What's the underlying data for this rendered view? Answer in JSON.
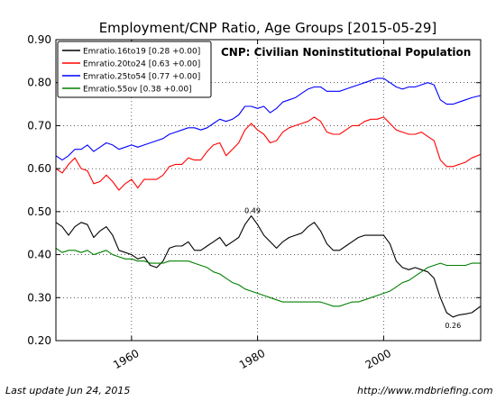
{
  "chart_data": {
    "type": "line",
    "title": "Employment/CNP Ratio, Age Groups  [2015-05-29]",
    "annotation_main": "CNP: Civilian Noninstitutional Population",
    "xlim": [
      1948,
      2015.4
    ],
    "ylim": [
      0.2,
      0.9
    ],
    "x_ticks": [
      1960,
      1980,
      2000
    ],
    "x_tick_labels": [
      "1960",
      "1980",
      "2000"
    ],
    "y_ticks": [
      0.2,
      0.3,
      0.4,
      0.5,
      0.6,
      0.7,
      0.8,
      0.9
    ],
    "y_tick_labels": [
      "0.20",
      "0.30",
      "0.40",
      "0.50",
      "0.60",
      "0.70",
      "0.80",
      "0.90"
    ],
    "grid": true,
    "legend_position": "top-left",
    "series": [
      {
        "name": "Emratio.16to19 [0.28 +0.00]",
        "color": "#000000",
        "x": [
          1948,
          1949,
          1950,
          1951,
          1952,
          1953,
          1954,
          1955,
          1956,
          1957,
          1958,
          1959,
          1960,
          1961,
          1962,
          1963,
          1964,
          1965,
          1966,
          1967,
          1968,
          1969,
          1970,
          1971,
          1972,
          1973,
          1974,
          1975,
          1976,
          1977,
          1978,
          1979,
          1980,
          1981,
          1982,
          1983,
          1984,
          1985,
          1986,
          1987,
          1988,
          1989,
          1990,
          1991,
          1992,
          1993,
          1994,
          1995,
          1996,
          1997,
          1998,
          1999,
          2000,
          2001,
          2002,
          2003,
          2004,
          2005,
          2006,
          2007,
          2008,
          2009,
          2010,
          2011,
          2012,
          2013,
          2014,
          2015.4
        ],
        "y": [
          0.475,
          0.465,
          0.445,
          0.465,
          0.475,
          0.47,
          0.44,
          0.455,
          0.465,
          0.445,
          0.41,
          0.405,
          0.4,
          0.39,
          0.395,
          0.375,
          0.37,
          0.385,
          0.415,
          0.42,
          0.42,
          0.43,
          0.41,
          0.41,
          0.42,
          0.43,
          0.44,
          0.42,
          0.43,
          0.44,
          0.47,
          0.49,
          0.47,
          0.445,
          0.43,
          0.415,
          0.43,
          0.44,
          0.445,
          0.45,
          0.465,
          0.475,
          0.455,
          0.425,
          0.41,
          0.41,
          0.42,
          0.43,
          0.44,
          0.445,
          0.445,
          0.445,
          0.445,
          0.425,
          0.385,
          0.37,
          0.365,
          0.37,
          0.365,
          0.36,
          0.345,
          0.3,
          0.265,
          0.255,
          0.26,
          0.262,
          0.265,
          0.28
        ]
      },
      {
        "name": "Emratio.20to24 [0.63 +0.00]",
        "color": "#ff0000",
        "x": [
          1948,
          1949,
          1950,
          1951,
          1952,
          1953,
          1954,
          1955,
          1956,
          1957,
          1958,
          1959,
          1960,
          1961,
          1962,
          1963,
          1964,
          1965,
          1966,
          1967,
          1968,
          1969,
          1970,
          1971,
          1972,
          1973,
          1974,
          1975,
          1976,
          1977,
          1978,
          1979,
          1980,
          1981,
          1982,
          1983,
          1984,
          1985,
          1986,
          1987,
          1988,
          1989,
          1990,
          1991,
          1992,
          1993,
          1994,
          1995,
          1996,
          1997,
          1998,
          1999,
          2000,
          2001,
          2002,
          2003,
          2004,
          2005,
          2006,
          2007,
          2008,
          2009,
          2010,
          2011,
          2012,
          2013,
          2014,
          2015.4
        ],
        "y": [
          0.6,
          0.59,
          0.61,
          0.625,
          0.6,
          0.595,
          0.565,
          0.57,
          0.585,
          0.57,
          0.55,
          0.565,
          0.575,
          0.555,
          0.575,
          0.575,
          0.575,
          0.585,
          0.605,
          0.61,
          0.61,
          0.625,
          0.62,
          0.62,
          0.64,
          0.655,
          0.66,
          0.63,
          0.645,
          0.66,
          0.69,
          0.705,
          0.69,
          0.68,
          0.66,
          0.665,
          0.685,
          0.695,
          0.7,
          0.705,
          0.71,
          0.72,
          0.71,
          0.685,
          0.68,
          0.68,
          0.69,
          0.7,
          0.7,
          0.71,
          0.715,
          0.715,
          0.72,
          0.705,
          0.69,
          0.685,
          0.68,
          0.68,
          0.685,
          0.675,
          0.665,
          0.62,
          0.605,
          0.605,
          0.61,
          0.615,
          0.625,
          0.633
        ]
      },
      {
        "name": "Emratio.25to54 [0.77 +0.00]",
        "color": "#0000ff",
        "x": [
          1948,
          1949,
          1950,
          1951,
          1952,
          1953,
          1954,
          1955,
          1956,
          1957,
          1958,
          1959,
          1960,
          1961,
          1962,
          1963,
          1964,
          1965,
          1966,
          1967,
          1968,
          1969,
          1970,
          1971,
          1972,
          1973,
          1974,
          1975,
          1976,
          1977,
          1978,
          1979,
          1980,
          1981,
          1982,
          1983,
          1984,
          1985,
          1986,
          1987,
          1988,
          1989,
          1990,
          1991,
          1992,
          1993,
          1994,
          1995,
          1996,
          1997,
          1998,
          1999,
          2000,
          2001,
          2002,
          2003,
          2004,
          2005,
          2006,
          2007,
          2008,
          2009,
          2010,
          2011,
          2012,
          2013,
          2014,
          2015.4
        ],
        "y": [
          0.63,
          0.62,
          0.63,
          0.645,
          0.645,
          0.655,
          0.64,
          0.65,
          0.66,
          0.655,
          0.645,
          0.65,
          0.655,
          0.65,
          0.655,
          0.66,
          0.665,
          0.67,
          0.68,
          0.685,
          0.69,
          0.695,
          0.695,
          0.69,
          0.695,
          0.705,
          0.715,
          0.71,
          0.715,
          0.725,
          0.745,
          0.745,
          0.74,
          0.745,
          0.73,
          0.74,
          0.755,
          0.76,
          0.765,
          0.775,
          0.785,
          0.79,
          0.79,
          0.78,
          0.78,
          0.78,
          0.785,
          0.79,
          0.795,
          0.8,
          0.805,
          0.81,
          0.81,
          0.8,
          0.79,
          0.785,
          0.79,
          0.79,
          0.795,
          0.8,
          0.795,
          0.76,
          0.75,
          0.75,
          0.755,
          0.76,
          0.765,
          0.77
        ]
      },
      {
        "name": "Emratio.55ov [0.38 +0.00]",
        "color": "#008000",
        "x": [
          1948,
          1949,
          1950,
          1951,
          1952,
          1953,
          1954,
          1955,
          1956,
          1957,
          1958,
          1959,
          1960,
          1961,
          1962,
          1963,
          1964,
          1965,
          1966,
          1967,
          1968,
          1969,
          1970,
          1971,
          1972,
          1973,
          1974,
          1975,
          1976,
          1977,
          1978,
          1979,
          1980,
          1981,
          1982,
          1983,
          1984,
          1985,
          1986,
          1987,
          1988,
          1989,
          1990,
          1991,
          1992,
          1993,
          1994,
          1995,
          1996,
          1997,
          1998,
          1999,
          2000,
          2001,
          2002,
          2003,
          2004,
          2005,
          2006,
          2007,
          2008,
          2009,
          2010,
          2011,
          2012,
          2013,
          2014,
          2015.4
        ],
        "y": [
          0.415,
          0.405,
          0.41,
          0.41,
          0.405,
          0.41,
          0.4,
          0.405,
          0.41,
          0.4,
          0.395,
          0.39,
          0.39,
          0.385,
          0.385,
          0.38,
          0.38,
          0.38,
          0.385,
          0.385,
          0.385,
          0.385,
          0.38,
          0.375,
          0.37,
          0.36,
          0.355,
          0.345,
          0.335,
          0.33,
          0.32,
          0.315,
          0.31,
          0.305,
          0.3,
          0.295,
          0.29,
          0.29,
          0.29,
          0.29,
          0.29,
          0.29,
          0.29,
          0.285,
          0.28,
          0.28,
          0.285,
          0.29,
          0.29,
          0.295,
          0.3,
          0.305,
          0.31,
          0.315,
          0.325,
          0.335,
          0.34,
          0.35,
          0.36,
          0.37,
          0.375,
          0.38,
          0.375,
          0.375,
          0.375,
          0.375,
          0.38,
          0.38
        ]
      }
    ],
    "point_labels": [
      {
        "text": "0.49",
        "x": 1979.2,
        "y": 0.49
      },
      {
        "text": "0.26",
        "x": 2011,
        "y": 0.255
      }
    ]
  },
  "footer": {
    "left": "Last update Jun 24, 2015",
    "right": "http://www.mdbriefing.com"
  }
}
